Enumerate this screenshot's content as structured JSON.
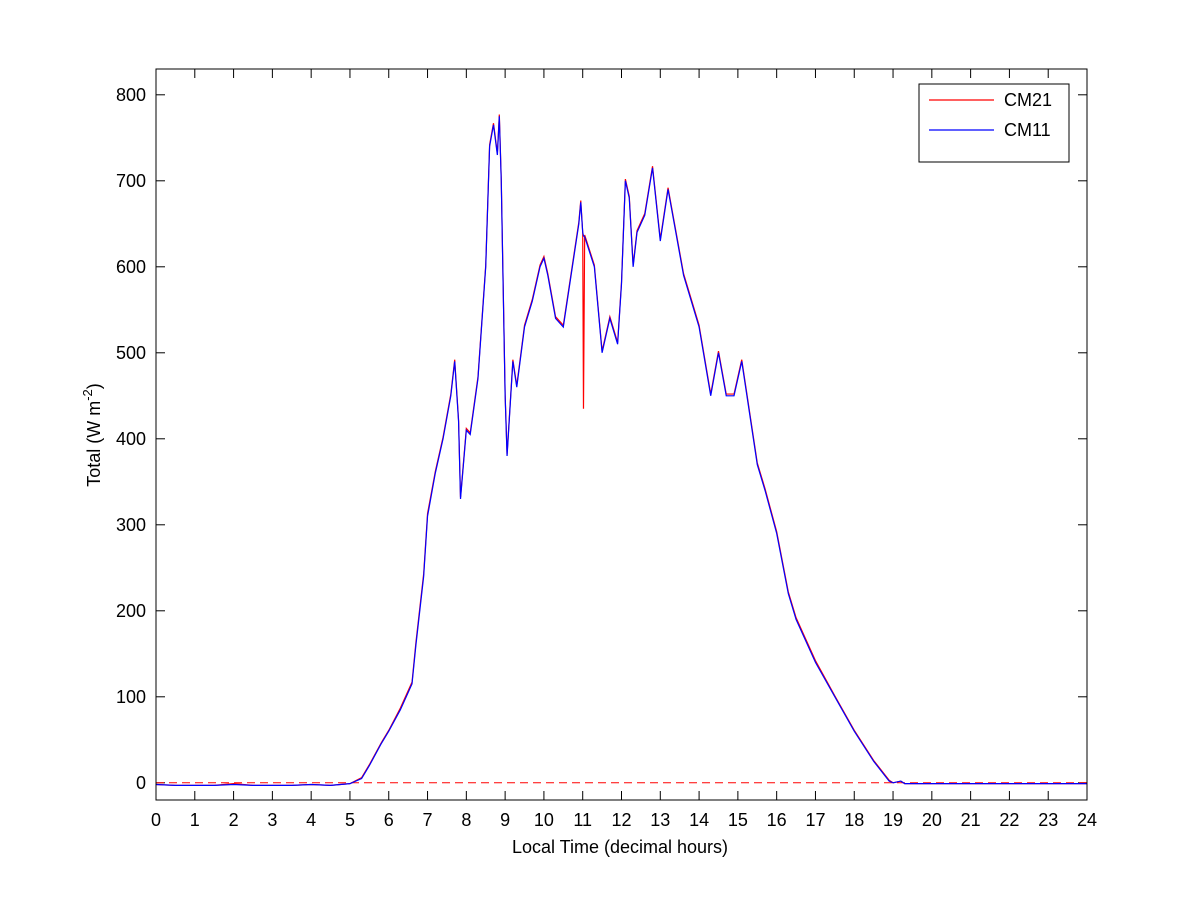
{
  "chart_data": {
    "type": "line",
    "xlabel": "Local Time (decimal hours)",
    "ylabel": [
      "Total (W m",
      "-2",
      ")"
    ],
    "x": [
      0,
      0.5,
      1,
      1.5,
      2,
      2.5,
      3,
      3.5,
      4,
      4.5,
      5,
      5.3,
      5.5,
      5.8,
      6,
      6.3,
      6.5,
      6.6,
      6.7,
      6.8,
      6.9,
      7,
      7.2,
      7.4,
      7.6,
      7.7,
      7.8,
      7.85,
      8,
      8.1,
      8.3,
      8.5,
      8.6,
      8.7,
      8.8,
      8.85,
      8.9,
      9,
      9.05,
      9.2,
      9.3,
      9.5,
      9.7,
      9.9,
      10,
      10.1,
      10.3,
      10.5,
      10.7,
      10.9,
      10.95,
      11,
      11.02,
      11.05,
      11.3,
      11.5,
      11.7,
      11.9,
      12,
      12.1,
      12.2,
      12.3,
      12.4,
      12.6,
      12.8,
      13,
      13.2,
      13.4,
      13.6,
      13.8,
      14,
      14.3,
      14.5,
      14.7,
      14.9,
      15.1,
      15.3,
      15.5,
      15.7,
      16,
      16.3,
      16.5,
      17,
      17.5,
      18,
      18.5,
      18.9,
      19,
      19.2,
      19.3,
      20,
      21,
      22,
      23,
      24
    ],
    "series": [
      {
        "name": "CM21",
        "color": "#ff0000",
        "values": [
          -2,
          -3,
          -3,
          -3,
          -1,
          -3,
          -3,
          -3,
          -2,
          -3,
          -1,
          6,
          21,
          46,
          61,
          87,
          107,
          117,
          163,
          203,
          243,
          313,
          362,
          402,
          452,
          492,
          422,
          332,
          412,
          407,
          472,
          602,
          742,
          767,
          732,
          777,
          702,
          452,
          382,
          492,
          462,
          532,
          562,
          602,
          612,
          592,
          542,
          532,
          592,
          652,
          677,
          640,
          435,
          637,
          602,
          502,
          542,
          512,
          582,
          702,
          682,
          602,
          642,
          662,
          717,
          632,
          692,
          642,
          592,
          562,
          532,
          452,
          502,
          452,
          452,
          492,
          432,
          372,
          342,
          292,
          222,
          192,
          142,
          101,
          61,
          26,
          3,
          0,
          2,
          -1,
          -1,
          -1,
          -1,
          -1,
          -1
        ]
      },
      {
        "name": "CM11",
        "color": "#0000ff",
        "values": [
          -2,
          -3,
          -3,
          -3,
          -2,
          -3,
          -3,
          -3,
          -2,
          -3,
          -1,
          5,
          20,
          45,
          60,
          85,
          105,
          115,
          160,
          200,
          240,
          310,
          360,
          400,
          450,
          490,
          420,
          330,
          410,
          405,
          470,
          600,
          740,
          765,
          730,
          775,
          700,
          450,
          380,
          490,
          460,
          530,
          560,
          600,
          610,
          590,
          540,
          530,
          590,
          650,
          675,
          640,
          636,
          635,
          600,
          500,
          540,
          510,
          580,
          700,
          680,
          600,
          640,
          660,
          715,
          630,
          690,
          640,
          590,
          560,
          530,
          450,
          500,
          450,
          450,
          490,
          430,
          370,
          340,
          290,
          220,
          190,
          140,
          100,
          60,
          25,
          2,
          0,
          2,
          -1,
          -1,
          -1,
          -1,
          -1,
          -1
        ]
      }
    ],
    "reference_line": {
      "value": 0,
      "color": "#ff0000",
      "style": "dashed"
    },
    "xlim": [
      0,
      24
    ],
    "xticks": [
      0,
      1,
      2,
      3,
      4,
      5,
      6,
      7,
      8,
      9,
      10,
      11,
      12,
      13,
      14,
      15,
      16,
      17,
      18,
      19,
      20,
      21,
      22,
      23,
      24
    ],
    "ylim": [
      -20,
      830
    ],
    "yticks": [
      0,
      100,
      200,
      300,
      400,
      500,
      600,
      700,
      800
    ],
    "grid": false,
    "legend": "upper right"
  }
}
